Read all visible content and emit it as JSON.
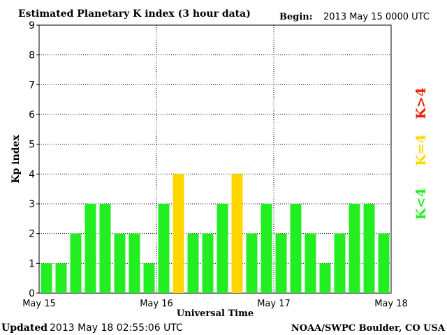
{
  "header": {
    "title": "Estimated Planetary K index (3 hour data)",
    "begin_label": "Begin:",
    "begin_value": "2013 May 15 0000 UTC"
  },
  "footer": {
    "updated_label": "Updated",
    "updated_value": "2013 May 18 02:55:06 UTC",
    "source": "NOAA/SWPC Boulder, CO USA"
  },
  "legend": {
    "low": "K<4",
    "equal": "K=4",
    "high": "K>4"
  },
  "colors": {
    "low": "#22ee22",
    "equal": "#ffd700",
    "high": "#ee2200",
    "grid": "#000000",
    "axis": "#000000",
    "background": "#ffffff"
  },
  "chart_data": {
    "type": "bar",
    "title": "Estimated Planetary K index (3 hour data)",
    "xlabel": "Universal Time",
    "ylabel": "Kp index",
    "ylim": [
      0,
      9
    ],
    "yticks": [
      "0",
      "1",
      "2",
      "3",
      "4",
      "5",
      "6",
      "7",
      "8",
      "9"
    ],
    "xticks": [
      "May 15",
      "May 16",
      "May 17",
      "May 18"
    ],
    "interval_hours": 3,
    "values": [
      1,
      1,
      2,
      3,
      3,
      2,
      2,
      1,
      3,
      4,
      2,
      2,
      3,
      4,
      2,
      3,
      2,
      3,
      2,
      1,
      2,
      3,
      3,
      2
    ],
    "grid": true,
    "legend_position": "right"
  }
}
